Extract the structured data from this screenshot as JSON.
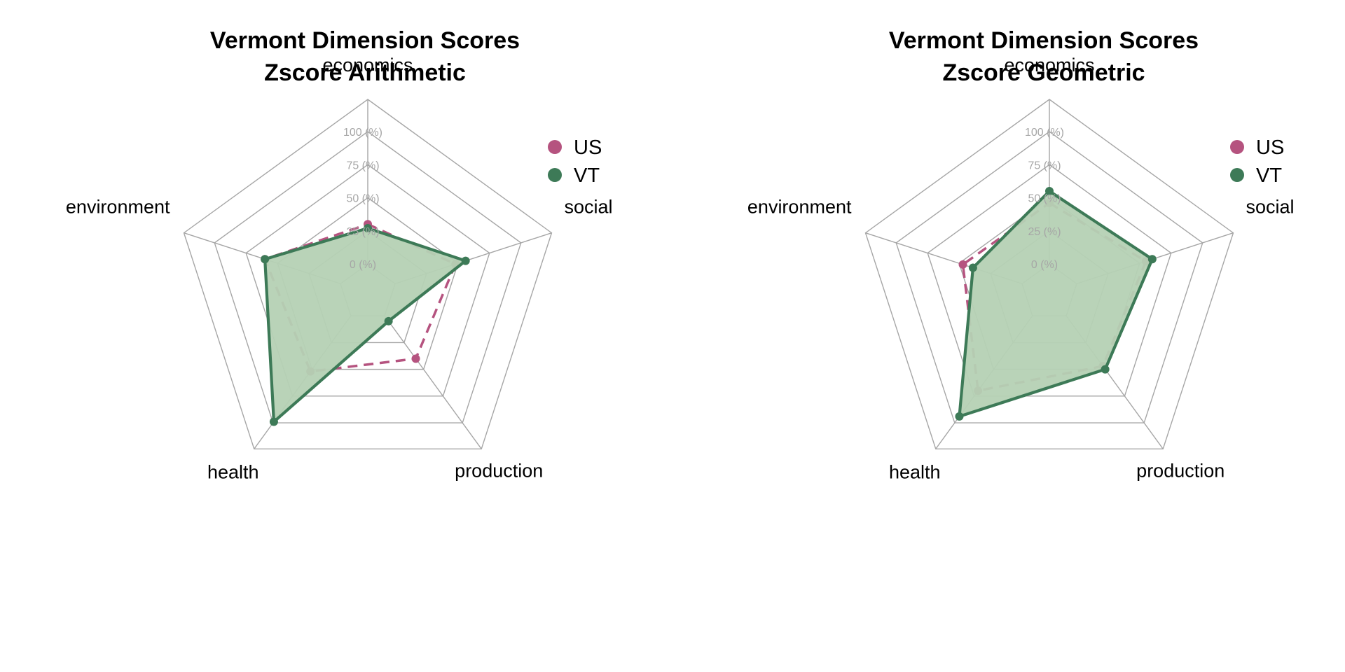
{
  "chart_data": [
    {
      "type": "radar",
      "title_line1": "Vermont Dimension Scores",
      "title_line2": "Zscore Arithmetic",
      "axes": [
        "economics",
        "social",
        "production",
        "health",
        "environment"
      ],
      "ticks": [
        "0 (%)",
        "25 (%)",
        "50 (%)",
        "75 (%)",
        "100 (%)"
      ],
      "range": [
        0,
        100
      ],
      "legend_position": "top-right",
      "series": [
        {
          "name": "US",
          "color": "#b5537f",
          "line": "dashed",
          "values": [
            30,
            48,
            40,
            52,
            60
          ]
        },
        {
          "name": "VT",
          "color": "#3d7a57",
          "line": "solid",
          "fill": "#b5d1b4",
          "values": [
            27,
            56,
            5,
            99,
            60
          ]
        }
      ]
    },
    {
      "type": "radar",
      "title_line1": "Vermont Dimension Scores",
      "title_line2": "Zscore Geometric",
      "axes": [
        "economics",
        "social",
        "production",
        "health",
        "environment"
      ],
      "ticks": [
        "0 (%)",
        "25 (%)",
        "50 (%)",
        "75 (%)",
        "100 (%)"
      ],
      "range": [
        0,
        100
      ],
      "legend_position": "top-right",
      "series": [
        {
          "name": "US",
          "color": "#b5537f",
          "line": "dashed",
          "values": [
            46,
            55,
            47,
            70,
            47
          ]
        },
        {
          "name": "VT",
          "color": "#3d7a57",
          "line": "solid",
          "fill": "#b5d1b4",
          "values": [
            55,
            60,
            50,
            94,
            39
          ]
        }
      ]
    }
  ]
}
